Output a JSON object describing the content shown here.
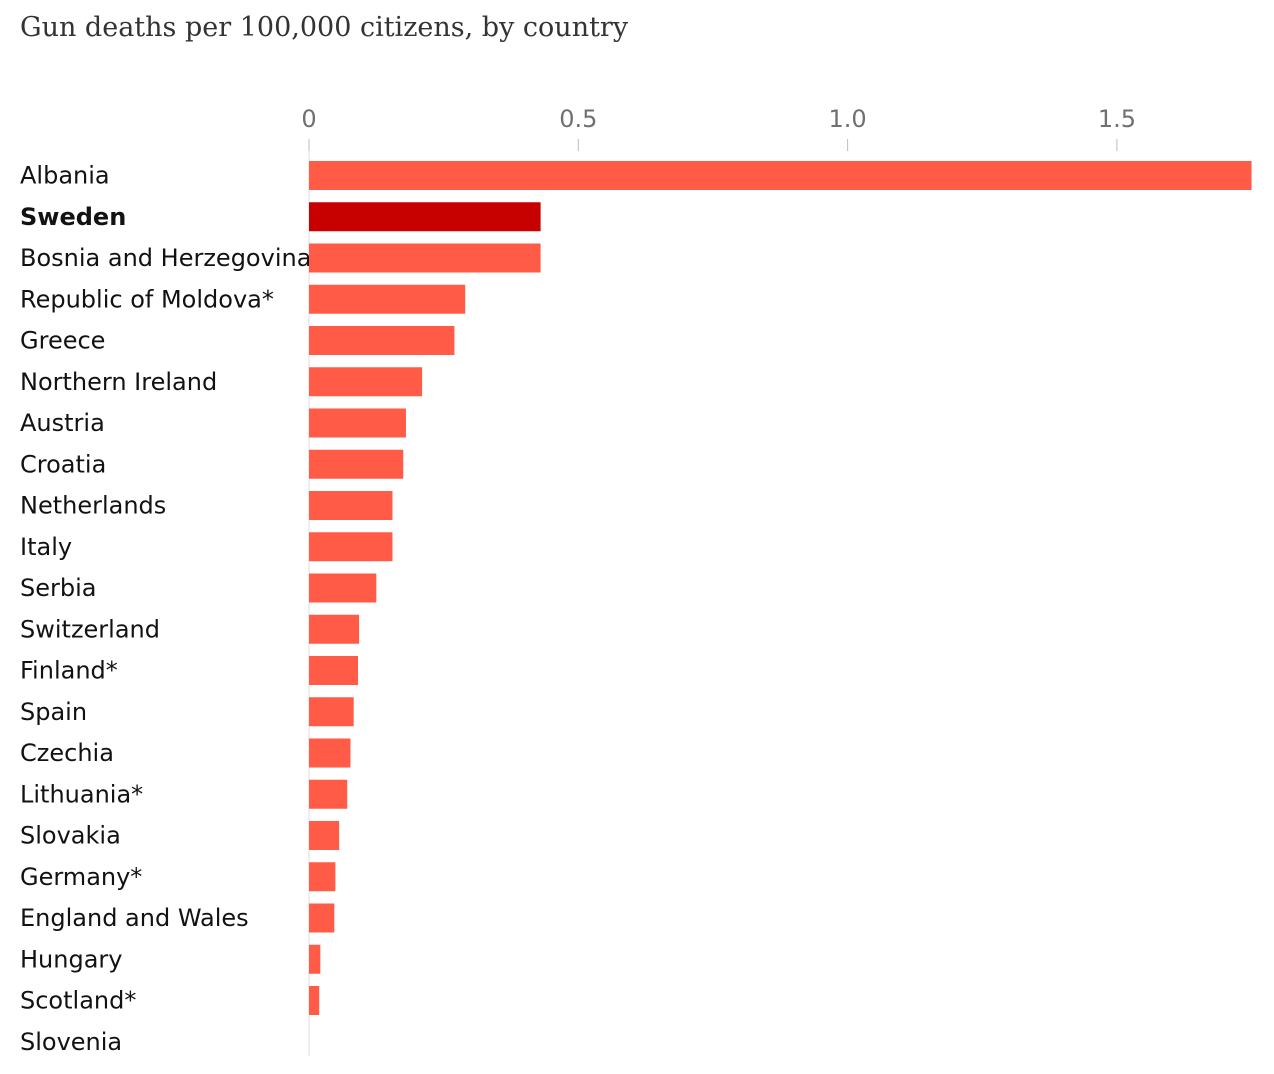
{
  "chart_data": {
    "type": "bar",
    "orientation": "horizontal",
    "title": "Gun deaths per 100,000 citizens, by country",
    "xlabel": "",
    "ylabel": "",
    "xlim": [
      0,
      1.75
    ],
    "ticks": [
      {
        "value": 0,
        "label": "0"
      },
      {
        "value": 0.5,
        "label": "0.5"
      },
      {
        "value": 1.0,
        "label": "1.0"
      },
      {
        "value": 1.5,
        "label": "1.5"
      }
    ],
    "grid": false,
    "legend": "none",
    "colors": {
      "bar": "#ff5b47",
      "highlight": "#c70000",
      "zero_line": "#dcdcdc"
    },
    "highlight": "Sweden",
    "categories": [
      "Albania",
      "Sweden",
      "Bosnia and Herzegovina",
      "Republic of Moldova*",
      "Greece",
      "Northern Ireland",
      "Austria",
      "Croatia",
      "Netherlands",
      "Italy",
      "Serbia",
      "Switzerland",
      "Finland*",
      "Spain",
      "Czechia",
      "Lithuania*",
      "Slovakia",
      "Germany*",
      "England and Wales",
      "Hungary",
      "Scotland*",
      "Slovenia"
    ],
    "values": [
      1.75,
      0.43,
      0.43,
      0.29,
      0.27,
      0.21,
      0.18,
      0.175,
      0.155,
      0.155,
      0.125,
      0.093,
      0.091,
      0.083,
      0.077,
      0.071,
      0.056,
      0.049,
      0.047,
      0.021,
      0.019,
      0.0
    ]
  }
}
